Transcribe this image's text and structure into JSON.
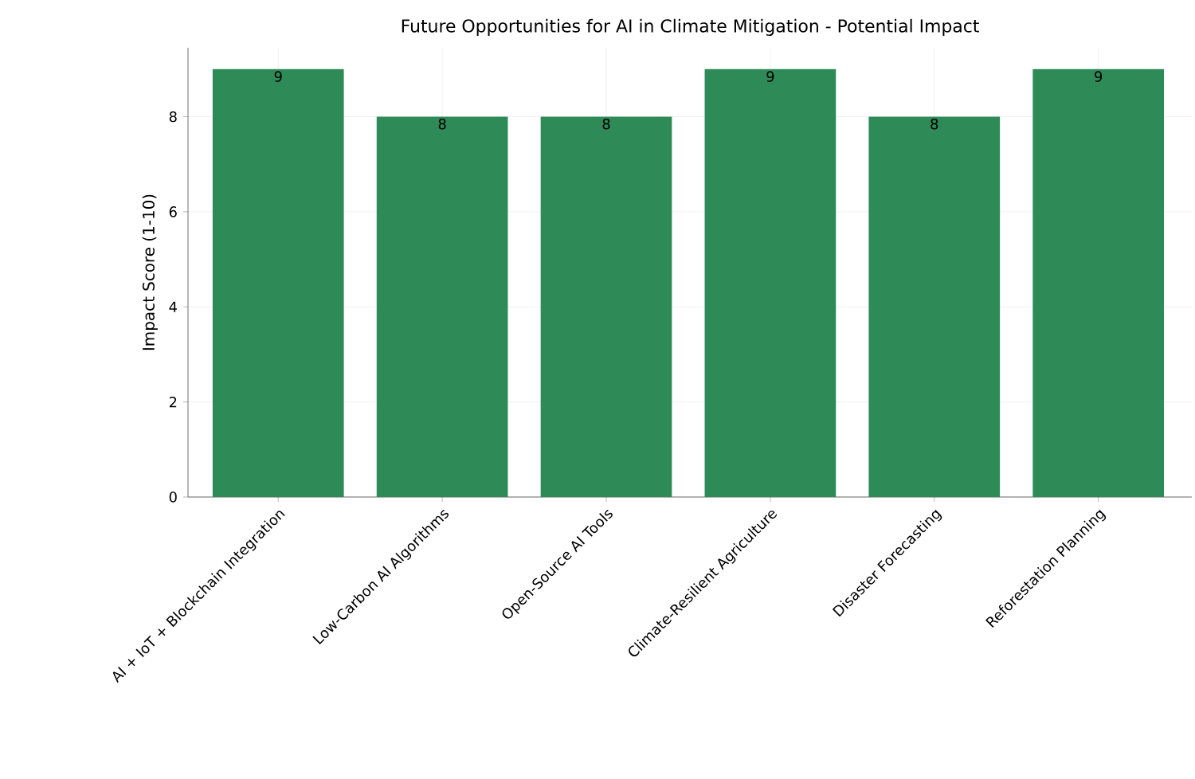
{
  "chart_data": {
    "type": "bar",
    "title": "Future Opportunities for AI in Climate Mitigation - Potential Impact",
    "ylabel": "Impact Score (1-10)",
    "categories": [
      "AI + IoT + Blockchain Integration",
      "Low-Carbon AI Algorithms",
      "Open-Source AI Tools",
      "Climate-Resilient Agriculture",
      "Disaster Forecasting",
      "Reforestation Planning"
    ],
    "values": [
      9,
      8,
      8,
      9,
      8,
      9
    ],
    "color": "#2e8b57",
    "ylim": [
      0,
      9.45
    ],
    "yticks": [
      0,
      2,
      4,
      6,
      8
    ],
    "grid": true,
    "data_labels": true
  }
}
